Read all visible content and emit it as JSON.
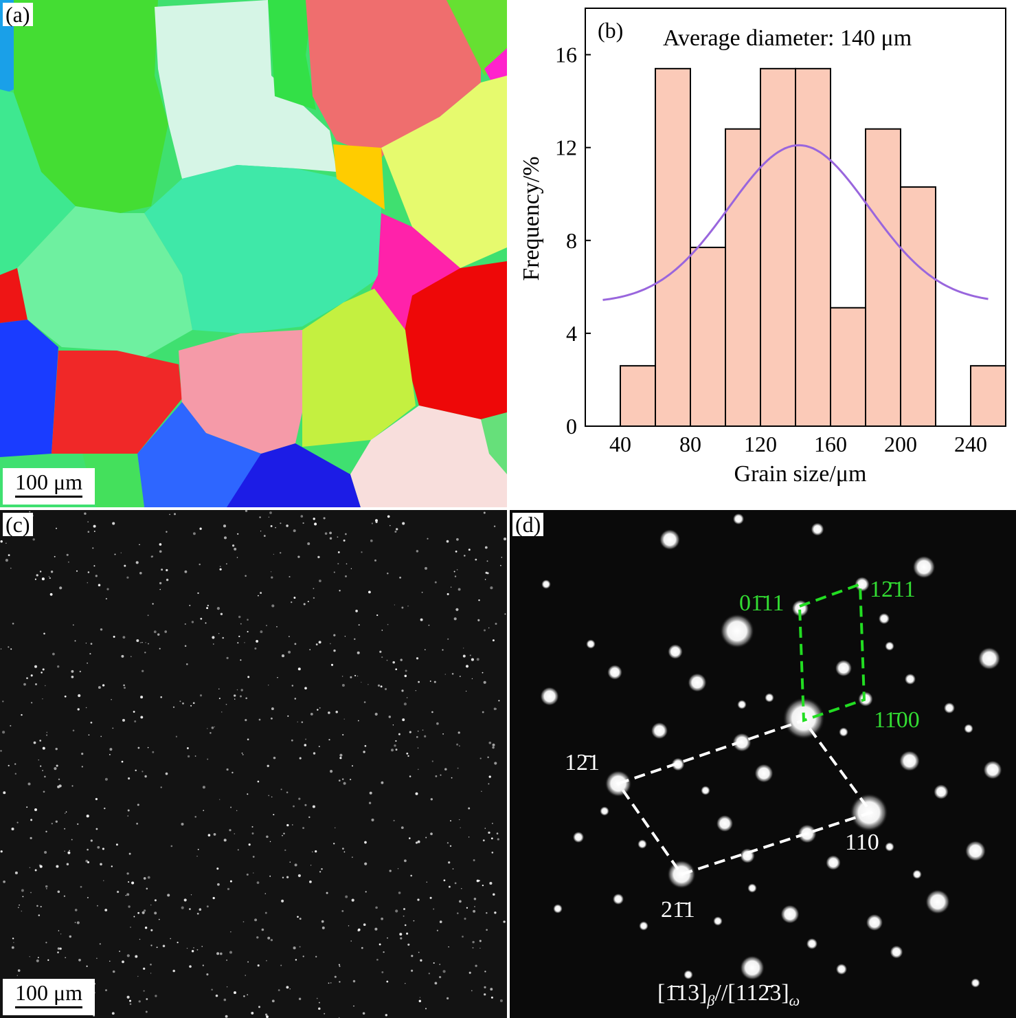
{
  "panels": {
    "a": {
      "label": "(a)",
      "scale_bar": "100 μm"
    },
    "b": {
      "label": "(b)"
    },
    "c": {
      "label": "(c)",
      "scale_bar": "100 μm"
    },
    "d": {
      "label": "(d)",
      "green_indices": [
        "0",
        "1̄",
        "11",
        "1",
        "2̄",
        "11",
        "1",
        "1̄",
        "00"
      ],
      "white_indices": [
        "1",
        "2̄",
        "1",
        "110",
        "2",
        "1̄",
        "1"
      ],
      "zone_axis": {
        "part1": "[",
        "bar1": "1̄",
        "part2": "13]",
        "sub1": "β",
        "part3": "//[11",
        "bar2": "2̄",
        "part4": "3]",
        "sub2": "ω"
      }
    }
  },
  "chart_data": {
    "type": "bar",
    "annotation": "Average diameter: 140 μm",
    "xlabel": "Grain size/μm",
    "ylabel": "Frequency/%",
    "xlim": [
      20,
      260
    ],
    "ylim": [
      0,
      18
    ],
    "xticks": [
      40,
      80,
      120,
      160,
      200,
      240
    ],
    "yticks": [
      0,
      4,
      8,
      12,
      16
    ],
    "bin_width": 20,
    "bins": [
      {
        "x0": 40,
        "x1": 60,
        "value": 2.6
      },
      {
        "x0": 60,
        "x1": 80,
        "value": 15.4
      },
      {
        "x0": 80,
        "x1": 100,
        "value": 7.7
      },
      {
        "x0": 100,
        "x1": 120,
        "value": 12.8
      },
      {
        "x0": 120,
        "x1": 140,
        "value": 15.4
      },
      {
        "x0": 140,
        "x1": 160,
        "value": 15.4
      },
      {
        "x0": 160,
        "x1": 180,
        "value": 5.1
      },
      {
        "x0": 180,
        "x1": 200,
        "value": 12.8
      },
      {
        "x0": 200,
        "x1": 220,
        "value": 10.3
      },
      {
        "x0": 240,
        "x1": 260,
        "value": 2.6
      }
    ],
    "fit_curve": {
      "type": "normal",
      "mean": 142,
      "sd": 40,
      "baseline": 5.3,
      "peak": 12.1,
      "x_range": [
        30,
        250
      ]
    },
    "colors": {
      "bar_fill": "#fbcab8",
      "bar_edge": "#000000",
      "fit": "#9966dd"
    }
  }
}
